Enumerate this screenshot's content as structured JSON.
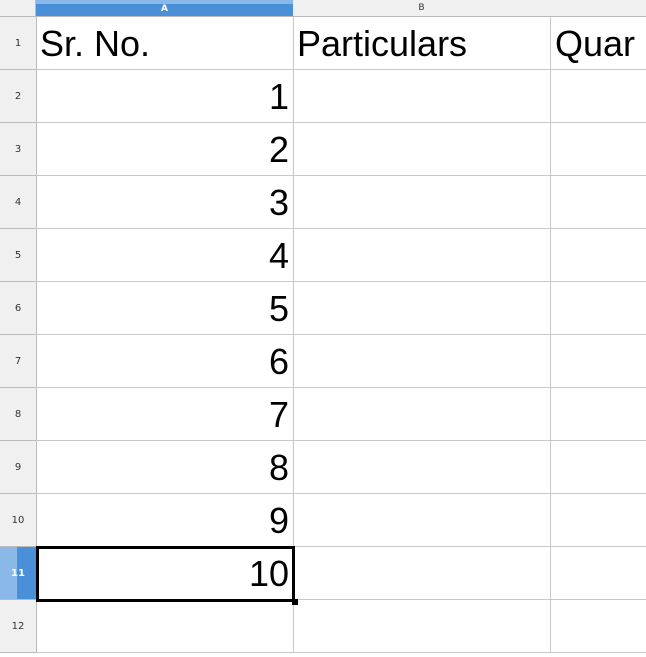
{
  "columns": [
    "A",
    "B",
    ""
  ],
  "selected_column": "A",
  "selected_row": "11",
  "rows": [
    {
      "n": "1",
      "a": "Sr. No.",
      "b": "Particulars",
      "c": "Quar"
    },
    {
      "n": "2",
      "a": "1",
      "b": "",
      "c": ""
    },
    {
      "n": "3",
      "a": "2",
      "b": "",
      "c": ""
    },
    {
      "n": "4",
      "a": "3",
      "b": "",
      "c": ""
    },
    {
      "n": "5",
      "a": "4",
      "b": "",
      "c": ""
    },
    {
      "n": "6",
      "a": "5",
      "b": "",
      "c": ""
    },
    {
      "n": "7",
      "a": "6",
      "b": "",
      "c": ""
    },
    {
      "n": "8",
      "a": "7",
      "b": "",
      "c": ""
    },
    {
      "n": "9",
      "a": "8",
      "b": "",
      "c": ""
    },
    {
      "n": "10",
      "a": "9",
      "b": "",
      "c": ""
    },
    {
      "n": "11",
      "a": "10",
      "b": "",
      "c": ""
    },
    {
      "n": "12",
      "a": "",
      "b": "",
      "c": ""
    }
  ]
}
